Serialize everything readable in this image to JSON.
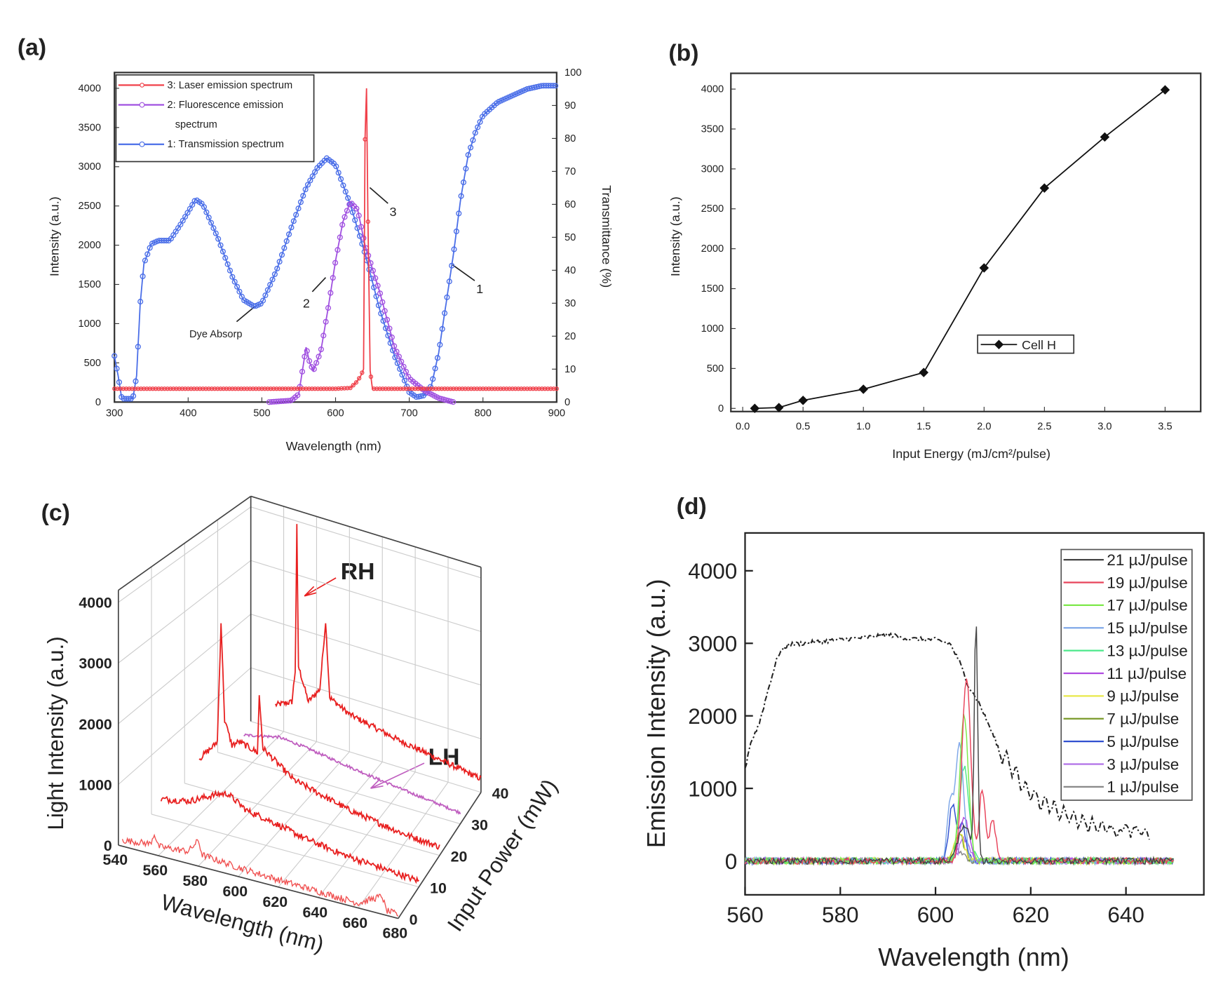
{
  "panels": {
    "a": "(a)",
    "b": "(b)",
    "c": "(c)",
    "d": "(d)"
  },
  "chart_data": [
    {
      "id": "a",
      "type": "line",
      "xlabel": "Wavelength (nm)",
      "ylabel": "Intensity (a.u.)",
      "y2label": "Transmittance (%)",
      "xlim": [
        300,
        900
      ],
      "ylim": [
        0,
        4200
      ],
      "y2lim": [
        0,
        100
      ],
      "xticks": [
        "300",
        "400",
        "500",
        "600",
        "700",
        "800",
        "900"
      ],
      "yticks": [
        "0",
        "500",
        "1000",
        "1500",
        "2000",
        "2500",
        "3000",
        "3500",
        "4000"
      ],
      "y2ticks": [
        "0",
        "10",
        "20",
        "30",
        "40",
        "50",
        "60",
        "70",
        "80",
        "90",
        "100"
      ],
      "annotations": {
        "dye": "Dye Absorp",
        "n1": "1",
        "n2": "2",
        "n3": "3"
      },
      "series": [
        {
          "name": "3: Laser emission spectrum",
          "color": "#f0404a",
          "axis": "left",
          "points": [
            [
              300,
              170
            ],
            [
              600,
              170
            ],
            [
              620,
              180
            ],
            [
              628,
              250
            ],
            [
              634,
              330
            ],
            [
              638,
              420
            ],
            [
              640,
              3350
            ],
            [
              642,
              4000
            ],
            [
              644,
              2300
            ],
            [
              647,
              400
            ],
            [
              650,
              170
            ],
            [
              900,
              170
            ]
          ]
        },
        {
          "name": "2: Fluorescence emission",
          "name2": "spectrum",
          "color": "#a050e0",
          "axis": "left",
          "points": [
            [
              510,
              0
            ],
            [
              540,
              20
            ],
            [
              550,
              100
            ],
            [
              555,
              400
            ],
            [
              560,
              700
            ],
            [
              565,
              500
            ],
            [
              570,
              400
            ],
            [
              580,
              650
            ],
            [
              590,
              1200
            ],
            [
              600,
              1800
            ],
            [
              610,
              2300
            ],
            [
              620,
              2550
            ],
            [
              630,
              2450
            ],
            [
              640,
              2000
            ],
            [
              660,
              1400
            ],
            [
              680,
              700
            ],
            [
              700,
              300
            ],
            [
              720,
              150
            ],
            [
              740,
              50
            ],
            [
              760,
              0
            ]
          ]
        },
        {
          "name": "1: Transmission spectrum",
          "color": "#4a6ee8",
          "axis": "right",
          "points": [
            [
              300,
              14
            ],
            [
              305,
              8
            ],
            [
              310,
              1
            ],
            [
              325,
              1
            ],
            [
              330,
              8
            ],
            [
              335,
              30
            ],
            [
              340,
              42
            ],
            [
              350,
              48
            ],
            [
              360,
              49
            ],
            [
              375,
              49
            ],
            [
              390,
              54
            ],
            [
              410,
              61.5
            ],
            [
              420,
              60
            ],
            [
              440,
              50
            ],
            [
              460,
              38
            ],
            [
              475,
              31
            ],
            [
              490,
              29
            ],
            [
              500,
              30
            ],
            [
              520,
              40
            ],
            [
              540,
              53
            ],
            [
              560,
              65
            ],
            [
              575,
              71
            ],
            [
              588,
              74
            ],
            [
              600,
              72
            ],
            [
              620,
              60
            ],
            [
              640,
              45
            ],
            [
              660,
              28
            ],
            [
              680,
              14
            ],
            [
              700,
              3
            ],
            [
              710,
              1.5
            ],
            [
              720,
              2
            ],
            [
              730,
              5
            ],
            [
              740,
              15
            ],
            [
              750,
              30
            ],
            [
              760,
              45
            ],
            [
              770,
              62
            ],
            [
              780,
              75
            ],
            [
              790,
              82
            ],
            [
              800,
              87
            ],
            [
              820,
              91
            ],
            [
              840,
              93
            ],
            [
              860,
              95
            ],
            [
              880,
              96
            ],
            [
              900,
              96
            ]
          ]
        }
      ]
    },
    {
      "id": "b",
      "type": "line",
      "xlabel": "Input Energy (mJ/cm²/pulse)",
      "ylabel": "Intensity (a.u.)",
      "xlim": [
        0,
        3.8
      ],
      "ylim": [
        0,
        4200
      ],
      "xticks": [
        "0.0",
        "0.5",
        "1.0",
        "1.5",
        "2.0",
        "2.5",
        "3.0",
        "3.5"
      ],
      "yticks": [
        "0",
        "500",
        "1000",
        "1500",
        "2000",
        "2500",
        "3000",
        "3500",
        "4000"
      ],
      "legend": "Cell H",
      "series": [
        {
          "name": "Cell H",
          "color": "#111111",
          "x": [
            0.1,
            0.3,
            0.5,
            1.0,
            1.5,
            2.0,
            2.5,
            3.0,
            3.5
          ],
          "y": [
            0,
            10,
            100,
            240,
            450,
            1760,
            2760,
            3400,
            3990
          ]
        }
      ]
    },
    {
      "id": "c",
      "type": "line",
      "subtype": "3d-waterfall",
      "xlabel": "Wavelength (nm)",
      "ylabel": "Input Power (mW)",
      "zlabel": "Light Intensity (a.u.)",
      "xticks": [
        "540",
        "560",
        "580",
        "600",
        "620",
        "640",
        "660",
        "680"
      ],
      "yticks": [
        "0",
        "10",
        "20",
        "30",
        "40"
      ],
      "zticks": [
        "0",
        "1000",
        "2000",
        "3000",
        "4000"
      ],
      "annotations": {
        "rh": "RH",
        "lh": "LH"
      },
      "series": [
        {
          "power": 0,
          "color": "#f05050",
          "points": [
            [
              542,
              100
            ],
            [
              556,
              160
            ],
            [
              558,
              350
            ],
            [
              560,
              150
            ],
            [
              575,
              200
            ],
            [
              580,
              420
            ],
            [
              582,
              200
            ],
            [
              600,
              150
            ],
            [
              620,
              120
            ],
            [
              640,
              100
            ],
            [
              660,
              80
            ],
            [
              672,
              300
            ],
            [
              674,
              80
            ],
            [
              680,
              60
            ]
          ]
        },
        {
          "power": 10,
          "color": "#e82020",
          "points": [
            [
              545,
              300
            ],
            [
              560,
              400
            ],
            [
              575,
              650
            ],
            [
              580,
              700
            ],
            [
              590,
              500
            ],
            [
              600,
              450
            ],
            [
              620,
              300
            ],
            [
              640,
              200
            ],
            [
              660,
              150
            ],
            [
              680,
              100
            ]
          ]
        },
        {
          "power": 20,
          "color": "#e82020",
          "points": [
            [
              548,
              500
            ],
            [
              556,
              800
            ],
            [
              558,
              900
            ],
            [
              560,
              3000
            ],
            [
              562,
              1300
            ],
            [
              566,
              900
            ],
            [
              570,
              1000
            ],
            [
              580,
              900
            ],
            [
              581,
              1900
            ],
            [
              583,
              1000
            ],
            [
              600,
              600
            ],
            [
              630,
              350
            ],
            [
              660,
              200
            ],
            [
              680,
              150
            ]
          ]
        },
        {
          "power": 30,
          "color": "#c060c0",
          "points": [
            [
              555,
              450
            ],
            [
              575,
              600
            ],
            [
              590,
              560
            ],
            [
              620,
              420
            ],
            [
              650,
              300
            ],
            [
              680,
              200
            ]
          ]
        },
        {
          "power": 40,
          "color": "#e82020",
          "points": [
            [
              555,
              450
            ],
            [
              565,
              600
            ],
            [
              567,
              1200
            ],
            [
              568,
              3900
            ],
            [
              569,
              1300
            ],
            [
              575,
              700
            ],
            [
              582,
              1000
            ],
            [
              585.5,
              2300
            ],
            [
              588,
              900
            ],
            [
              600,
              700
            ],
            [
              630,
              500
            ],
            [
              660,
              350
            ],
            [
              680,
              250
            ]
          ]
        }
      ]
    },
    {
      "id": "d",
      "type": "line",
      "xlabel": "Wavelength (nm)",
      "ylabel": "Emission Intensity (a.u.)",
      "xlim": [
        560,
        650
      ],
      "ylim": [
        -300,
        4500
      ],
      "xticks": [
        "560",
        "580",
        "600",
        "620",
        "640"
      ],
      "yticks": [
        "0",
        "1000",
        "2000",
        "3000",
        "4000"
      ],
      "reference_curve": {
        "style": "dash-dot",
        "color": "#222222",
        "points": [
          [
            560,
            1250
          ],
          [
            561,
            1600
          ],
          [
            563,
            1900
          ],
          [
            565,
            2400
          ],
          [
            567,
            2850
          ],
          [
            569,
            2980
          ],
          [
            575,
            3020
          ],
          [
            585,
            3080
          ],
          [
            590,
            3120
          ],
          [
            595,
            3060
          ],
          [
            600,
            3050
          ],
          [
            603,
            3000
          ],
          [
            605,
            2750
          ],
          [
            607,
            2400
          ],
          [
            609,
            2200
          ],
          [
            611,
            1900
          ],
          [
            613,
            1600
          ],
          [
            614,
            1350
          ],
          [
            615,
            1550
          ],
          [
            616,
            1150
          ],
          [
            617,
            1300
          ],
          [
            618,
            950
          ],
          [
            619,
            1100
          ],
          [
            620,
            850
          ],
          [
            621,
            1000
          ],
          [
            622,
            700
          ],
          [
            623,
            900
          ],
          [
            624,
            650
          ],
          [
            625,
            850
          ],
          [
            626,
            550
          ],
          [
            627,
            800
          ],
          [
            628,
            500
          ],
          [
            629,
            700
          ],
          [
            630,
            450
          ],
          [
            631,
            650
          ],
          [
            632,
            400
          ],
          [
            633,
            600
          ],
          [
            634,
            380
          ],
          [
            635,
            550
          ],
          [
            636,
            380
          ],
          [
            637,
            520
          ],
          [
            638,
            350
          ],
          [
            640,
            500
          ],
          [
            641,
            350
          ],
          [
            642,
            480
          ],
          [
            643,
            350
          ],
          [
            644,
            450
          ],
          [
            645,
            300
          ]
        ]
      },
      "series": [
        {
          "name": "21 µJ/pulse",
          "color": "#444444",
          "peaks": [
            [
              608.5,
              3280,
              0.35
            ],
            [
              606,
              500,
              1.2
            ]
          ]
        },
        {
          "name": "19 µJ/pulse",
          "color": "#e8435a",
          "peaks": [
            [
              606.5,
              2550,
              0.9
            ],
            [
              609.8,
              1000,
              0.6
            ],
            [
              612,
              550,
              0.7
            ]
          ]
        },
        {
          "name": "17 µJ/pulse",
          "color": "#7de84a",
          "peaks": [
            [
              606,
              2000,
              0.9
            ]
          ]
        },
        {
          "name": "15 µJ/pulse",
          "color": "#7fa8e8",
          "peaks": [
            [
              605,
              1600,
              0.9
            ],
            [
              603,
              700,
              0.6
            ]
          ]
        },
        {
          "name": "13 µJ/pulse",
          "color": "#4be88a",
          "peaks": [
            [
              606,
              1300,
              1.0
            ]
          ]
        },
        {
          "name": "11 µJ/pulse",
          "color": "#b04be0",
          "peaks": [
            [
              606,
              600,
              1.0
            ]
          ]
        },
        {
          "name": "9 µJ/pulse",
          "color": "#e8e84a",
          "peaks": [
            [
              605,
              400,
              1.0
            ]
          ]
        },
        {
          "name": "7 µJ/pulse",
          "color": "#7a9a2a",
          "peaks": [
            [
              605,
              350,
              1.0
            ]
          ]
        },
        {
          "name": "5 µJ/pulse",
          "color": "#3050d0",
          "peaks": [
            [
              603.5,
              750,
              0.7
            ],
            [
              605.5,
              500,
              0.8
            ]
          ]
        },
        {
          "name": "3 µJ/pulse",
          "color": "#b070e8",
          "peaks": [
            [
              606,
              300,
              1.0
            ]
          ]
        },
        {
          "name": "1 µJ/pulse",
          "color": "#888888",
          "peaks": [
            [
              605,
              150,
              1.0
            ]
          ]
        }
      ]
    }
  ]
}
